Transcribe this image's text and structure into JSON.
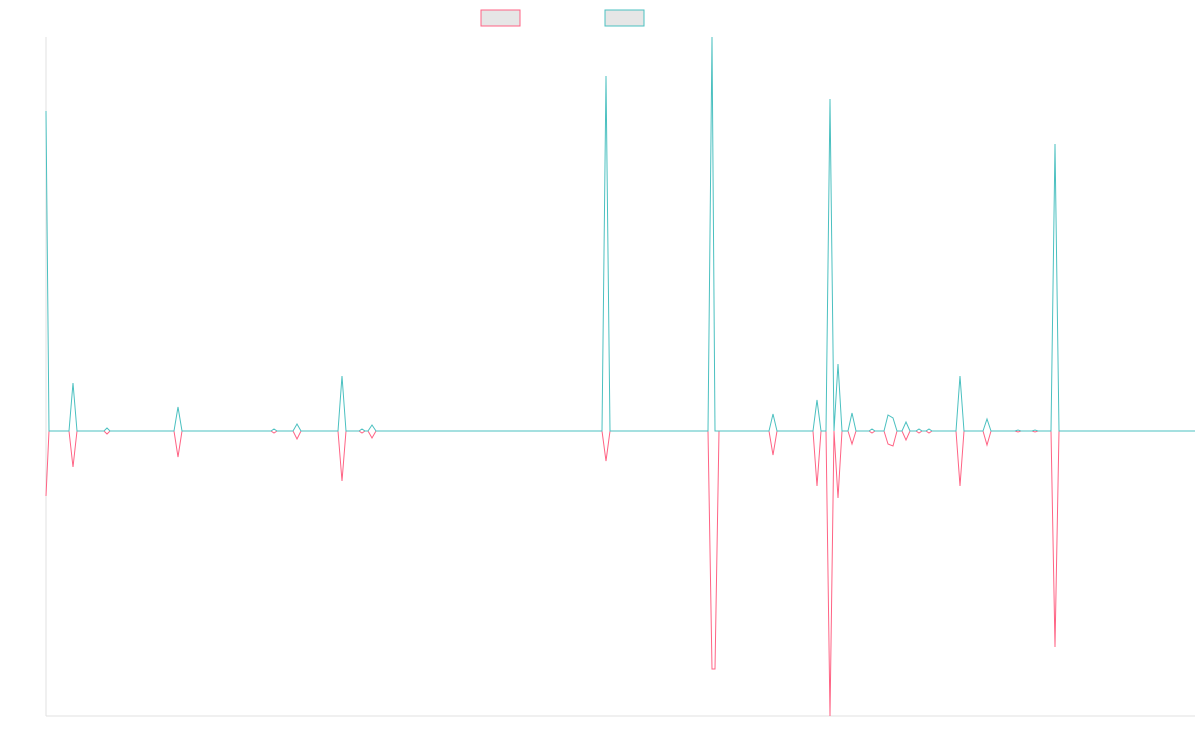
{
  "chart_data": {
    "type": "line",
    "xlim": [
      0,
      1149
    ],
    "ylim": [
      -285,
      394
    ],
    "x": [
      0,
      3,
      23,
      27,
      31,
      58,
      61,
      64,
      128,
      132,
      136,
      225,
      228,
      231,
      247,
      251,
      255,
      292,
      296,
      300,
      313,
      316,
      319,
      322,
      326,
      330,
      556,
      560,
      564,
      662,
      666,
      669,
      673,
      723,
      727,
      731,
      767,
      771,
      775,
      780,
      784,
      788,
      792,
      796,
      802,
      806,
      810,
      823,
      826,
      829,
      838,
      842,
      847,
      851,
      856,
      860,
      864,
      870,
      873,
      876,
      880,
      883,
      886,
      910,
      914,
      918,
      937,
      941,
      945,
      969,
      972,
      975,
      986,
      989,
      992,
      1005,
      1009,
      1013,
      1149
    ],
    "series": [
      {
        "color": "#ff6384",
        "values": [
          -65,
          0,
          0,
          -36,
          0,
          0,
          -3,
          0,
          0,
          -26,
          0,
          0,
          -2,
          0,
          0,
          -8,
          0,
          0,
          -50,
          0,
          0,
          -2,
          0,
          0,
          -7,
          0,
          0,
          -30,
          0,
          0,
          -238,
          -238,
          0,
          0,
          -24,
          0,
          0,
          -55,
          0,
          0,
          -285,
          0,
          -67,
          0,
          0,
          -13,
          0,
          0,
          -2,
          0,
          0,
          -13,
          -15,
          0,
          0,
          -9,
          0,
          0,
          -2,
          0,
          0,
          -2,
          0,
          0,
          -55,
          0,
          0,
          -14,
          0,
          0,
          -1,
          0,
          0,
          -1,
          0,
          0,
          -216,
          0,
          0
        ]
      },
      {
        "color": "#4bc0c0",
        "values": [
          320,
          0,
          0,
          48,
          0,
          0,
          3,
          0,
          0,
          24,
          0,
          0,
          2,
          0,
          0,
          7,
          0,
          0,
          55,
          0,
          0,
          2,
          0,
          0,
          6,
          0,
          0,
          355,
          0,
          0,
          394,
          0,
          0,
          0,
          17,
          0,
          0,
          31,
          0,
          0,
          332,
          0,
          67,
          0,
          0,
          18,
          0,
          0,
          2,
          0,
          0,
          16,
          13,
          0,
          0,
          9,
          0,
          0,
          2,
          0,
          0,
          2,
          0,
          0,
          55,
          0,
          0,
          12,
          0,
          0,
          1,
          0,
          0,
          1,
          0,
          0,
          287,
          0,
          0
        ]
      }
    ]
  }
}
